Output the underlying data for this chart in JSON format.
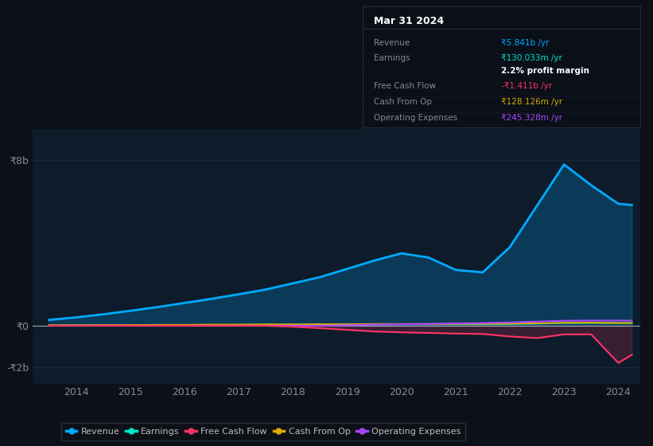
{
  "background_color": "#0d1117",
  "plot_bg_color": "#0d1b2a",
  "years": [
    2013.5,
    2014.0,
    2014.5,
    2015.0,
    2015.5,
    2016.0,
    2016.5,
    2017.0,
    2017.5,
    2018.0,
    2018.5,
    2019.0,
    2019.5,
    2020.0,
    2020.5,
    2021.0,
    2021.5,
    2022.0,
    2022.5,
    2023.0,
    2023.5,
    2024.0,
    2024.25
  ],
  "revenue": [
    0.28,
    0.4,
    0.55,
    0.72,
    0.9,
    1.1,
    1.3,
    1.52,
    1.75,
    2.05,
    2.35,
    2.75,
    3.15,
    3.5,
    3.3,
    2.7,
    2.58,
    3.8,
    5.8,
    7.8,
    6.8,
    5.9,
    5.841
  ],
  "earnings": [
    0.01,
    0.02,
    0.02,
    0.03,
    0.03,
    0.03,
    0.04,
    0.04,
    0.05,
    0.05,
    0.06,
    0.07,
    0.07,
    0.07,
    0.07,
    0.07,
    0.07,
    0.08,
    0.1,
    0.13,
    0.13,
    0.13,
    0.13
  ],
  "free_cash_flow": [
    0.0,
    0.0,
    0.0,
    0.0,
    0.0,
    0.0,
    0.0,
    0.0,
    0.0,
    -0.05,
    -0.12,
    -0.2,
    -0.28,
    -0.32,
    -0.35,
    -0.38,
    -0.4,
    -0.52,
    -0.6,
    -0.42,
    -0.42,
    -1.8,
    -1.411
  ],
  "cash_from_op": [
    0.02,
    0.02,
    0.03,
    0.03,
    0.04,
    0.04,
    0.05,
    0.05,
    0.06,
    0.06,
    0.07,
    0.07,
    0.08,
    0.08,
    0.08,
    0.09,
    0.09,
    0.1,
    0.12,
    0.14,
    0.15,
    0.13,
    0.128
  ],
  "operating_expenses": [
    0.0,
    0.0,
    0.0,
    0.0,
    0.0,
    0.0,
    0.0,
    0.0,
    0.0,
    0.0,
    0.0,
    0.02,
    0.05,
    0.07,
    0.09,
    0.11,
    0.13,
    0.16,
    0.2,
    0.24,
    0.25,
    0.25,
    0.245
  ],
  "revenue_color": "#00aaff",
  "earnings_color": "#00e5cc",
  "free_cash_flow_color": "#ff3366",
  "cash_from_op_color": "#ddaa00",
  "operating_expenses_color": "#aa44ff",
  "ylim": [
    -2.8,
    9.5
  ],
  "ytick_vals": [
    -2,
    0,
    8
  ],
  "ytick_labels": [
    "-₹2b",
    "₹0",
    "₹8b"
  ],
  "xtick_years": [
    2014,
    2015,
    2016,
    2017,
    2018,
    2019,
    2020,
    2021,
    2022,
    2023,
    2024
  ],
  "grid_color": "#1e2d3d",
  "info_box": {
    "title": "Mar 31 2024",
    "rows": [
      {
        "label": "Revenue",
        "value": "₹5.841b /yr",
        "value_color": "#00aaff"
      },
      {
        "label": "Earnings",
        "value": "₹130.033m /yr",
        "value_color": "#00e5cc"
      },
      {
        "label": "",
        "value": "2.2% profit margin",
        "value_color": "#ffffff"
      },
      {
        "label": "Free Cash Flow",
        "value": "-₹1.411b /yr",
        "value_color": "#ff3366"
      },
      {
        "label": "Cash From Op",
        "value": "₹128.126m /yr",
        "value_color": "#ddaa00"
      },
      {
        "label": "Operating Expenses",
        "value": "₹245.328m /yr",
        "value_color": "#aa44ff"
      }
    ]
  },
  "legend": [
    {
      "label": "Revenue",
      "color": "#00aaff"
    },
    {
      "label": "Earnings",
      "color": "#00e5cc"
    },
    {
      "label": "Free Cash Flow",
      "color": "#ff3366"
    },
    {
      "label": "Cash From Op",
      "color": "#ddaa00"
    },
    {
      "label": "Operating Expenses",
      "color": "#aa44ff"
    }
  ]
}
